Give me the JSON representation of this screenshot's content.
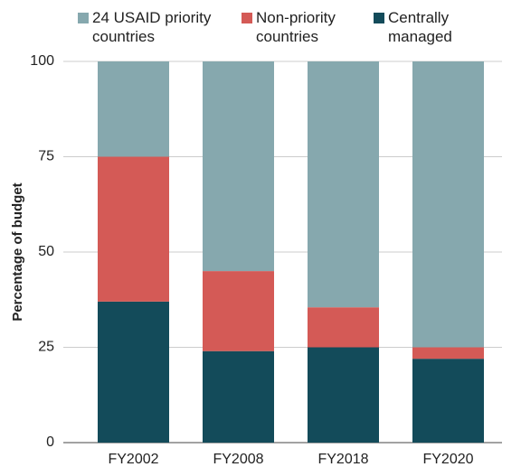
{
  "chart_data": {
    "type": "stacked_bar",
    "ylabel": "Percentage of budget",
    "categories": [
      "FY2002",
      "FY2008",
      "FY2018",
      "FY2020"
    ],
    "series": [
      {
        "name": "24 USAID priority countries",
        "color": "#86a8ae",
        "values": [
          25,
          55,
          64.5,
          75
        ]
      },
      {
        "name": "Non-priority countries",
        "color": "#d45a56",
        "values": [
          38,
          21,
          10.5,
          3
        ]
      },
      {
        "name": "Centrally managed",
        "color": "#134b5a",
        "values": [
          37,
          24,
          25,
          22
        ]
      }
    ],
    "ylim": [
      0,
      100
    ],
    "yticks": [
      0,
      25,
      50,
      75,
      100
    ],
    "grid": true,
    "legend": "top"
  }
}
